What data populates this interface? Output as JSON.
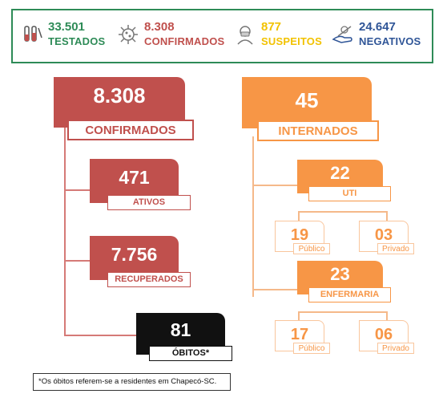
{
  "summary": {
    "tested": {
      "value": "33.501",
      "label": "TESTADOS",
      "icon": "test-tubes-icon"
    },
    "confirmed": {
      "value": "8.308",
      "label": "CONFIRMADOS",
      "icon": "virus-icon"
    },
    "suspected": {
      "value": "877",
      "label": "SUSPEITOS",
      "icon": "masked-person-icon"
    },
    "negative": {
      "value": "24.647",
      "label": "NEGATIVOS",
      "icon": "hand-virus-icon"
    }
  },
  "colors": {
    "green": "#2e8b57",
    "red": "#c0504d",
    "yellow": "#f2c200",
    "blue": "#2f5597",
    "orange": "#f79646",
    "black": "#111111"
  },
  "confirmed": {
    "value": "8.308",
    "label": "CONFIRMADOS"
  },
  "active": {
    "value": "471",
    "label": "ATIVOS"
  },
  "recovered": {
    "value": "7.756",
    "label": "RECUPERADOS"
  },
  "deaths": {
    "value": "81",
    "label": "ÓBITOS*"
  },
  "hospitalized": {
    "value": "45",
    "label": "INTERNADOS"
  },
  "icu": {
    "value": "22",
    "label": "UTI",
    "public": {
      "value": "19",
      "label": "Público"
    },
    "private": {
      "value": "03",
      "label": "Privado"
    }
  },
  "ward": {
    "value": "23",
    "label": "ENFERMARIA",
    "public": {
      "value": "17",
      "label": "Público"
    },
    "private": {
      "value": "06",
      "label": "Privado"
    }
  },
  "footnote": "*Os óbitos referem-se a residentes em Chapecó-SC."
}
